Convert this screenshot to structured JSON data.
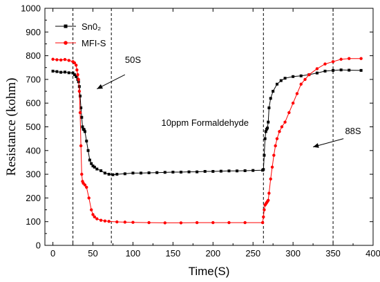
{
  "chart_data": {
    "type": "line",
    "xlabel": "Time(S)",
    "ylabel": "Resistance (kohm)",
    "xlim": [
      -10,
      400
    ],
    "ylim": [
      0,
      1000
    ],
    "x_ticks": [
      0,
      50,
      100,
      150,
      200,
      250,
      300,
      350,
      400
    ],
    "y_ticks": [
      0,
      100,
      200,
      300,
      400,
      500,
      600,
      700,
      800,
      900,
      1000
    ],
    "legend_position": "top-left",
    "grid": false,
    "series": [
      {
        "name": "Sn0₂",
        "color": "#000000",
        "marker": "square",
        "x": [
          0,
          5,
          10,
          15,
          20,
          25,
          27,
          29,
          31,
          32,
          33,
          34,
          35,
          36,
          37,
          38,
          39,
          40,
          42,
          44,
          46,
          48,
          50,
          52,
          55,
          60,
          65,
          70,
          75,
          80,
          90,
          100,
          110,
          120,
          130,
          140,
          150,
          160,
          170,
          180,
          190,
          200,
          210,
          220,
          230,
          240,
          250,
          262,
          263,
          264,
          265,
          266,
          267,
          268,
          269,
          270,
          272,
          275,
          280,
          285,
          290,
          300,
          310,
          320,
          330,
          340,
          350,
          360,
          370,
          385
        ],
        "y": [
          735,
          733,
          730,
          731,
          728,
          727,
          720,
          712,
          700,
          690,
          670,
          630,
          580,
          540,
          500,
          490,
          488,
          480,
          440,
          400,
          360,
          345,
          335,
          330,
          322,
          315,
          305,
          300,
          298,
          300,
          302,
          305,
          305,
          306,
          307,
          308,
          309,
          309,
          310,
          310,
          312,
          312,
          313,
          314,
          314,
          315,
          316,
          317,
          320,
          380,
          450,
          480,
          490,
          495,
          520,
          580,
          620,
          650,
          680,
          695,
          705,
          712,
          715,
          720,
          727,
          735,
          738,
          740,
          739,
          738
        ]
      },
      {
        "name": "MFI-S",
        "color": "#ff0000",
        "marker": "circle",
        "x": [
          0,
          5,
          10,
          15,
          20,
          25,
          27,
          29,
          30,
          31,
          32,
          33,
          34,
          35,
          36,
          37,
          38,
          40,
          42,
          45,
          48,
          50,
          52,
          55,
          60,
          65,
          70,
          80,
          90,
          100,
          120,
          140,
          160,
          180,
          200,
          220,
          240,
          262,
          263,
          264,
          265,
          266,
          267,
          268,
          269,
          270,
          272,
          274,
          276,
          278,
          280,
          283,
          286,
          290,
          295,
          300,
          305,
          310,
          315,
          320,
          330,
          340,
          350,
          360,
          370,
          385
        ],
        "y": [
          785,
          783,
          782,
          784,
          780,
          775,
          770,
          760,
          740,
          720,
          700,
          650,
          560,
          420,
          300,
          270,
          262,
          255,
          245,
          200,
          150,
          130,
          120,
          112,
          106,
          103,
          101,
          99,
          98,
          97,
          96,
          95,
          95,
          96,
          96,
          96,
          96,
          96,
          120,
          150,
          170,
          175,
          180,
          185,
          190,
          220,
          280,
          330,
          380,
          420,
          450,
          480,
          500,
          520,
          560,
          600,
          640,
          680,
          700,
          720,
          745,
          765,
          775,
          785,
          788,
          788
        ]
      }
    ],
    "vertical_lines_x": [
      25,
      73,
      263,
      350
    ],
    "annotations": [
      {
        "text": "50S",
        "x": 100,
        "y": 770
      },
      {
        "text": "10ppm Formaldehyde",
        "x": 190,
        "y": 505
      },
      {
        "text": "88S",
        "x": 375,
        "y": 470
      }
    ],
    "arrows": [
      {
        "from": [
          90,
          720
        ],
        "to": [
          55,
          660
        ]
      },
      {
        "from": [
          363,
          450
        ],
        "to": [
          325,
          415
        ]
      }
    ]
  }
}
